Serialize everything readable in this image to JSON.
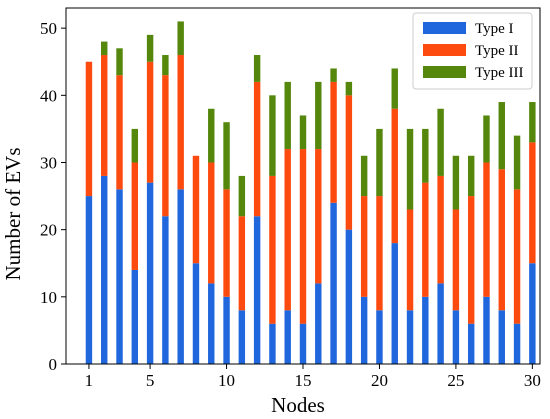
{
  "chart_data": {
    "type": "bar",
    "stacked": true,
    "title": "",
    "xlabel": "Nodes",
    "ylabel": "Number of EVs",
    "ylim": [
      0,
      53
    ],
    "xlim": [
      -0.5,
      30.5
    ],
    "xticks": [
      1,
      5,
      10,
      15,
      20,
      25,
      30
    ],
    "yticks": [
      0,
      10,
      20,
      30,
      40,
      50
    ],
    "grid": false,
    "legend_position": "top-right",
    "categories": [
      1,
      2,
      3,
      4,
      5,
      6,
      7,
      8,
      9,
      10,
      11,
      12,
      13,
      14,
      15,
      16,
      17,
      18,
      19,
      20,
      21,
      22,
      23,
      24,
      25,
      26,
      27,
      28,
      29,
      30
    ],
    "series": [
      {
        "name": "Type I",
        "color": "#2066dc",
        "values": [
          25,
          28,
          26,
          14,
          27,
          22,
          26,
          15,
          12,
          10,
          8,
          22,
          6,
          8,
          6,
          12,
          24,
          20,
          10,
          8,
          18,
          8,
          10,
          12,
          8,
          6,
          10,
          8,
          6,
          15
        ]
      },
      {
        "name": "Type II",
        "color": "#fd4b10",
        "values": [
          20,
          18,
          17,
          16,
          18,
          21,
          20,
          16,
          18,
          16,
          14,
          20,
          22,
          24,
          26,
          20,
          18,
          20,
          15,
          17,
          20,
          15,
          17,
          16,
          15,
          19,
          20,
          21,
          20,
          18
        ]
      },
      {
        "name": "Type III",
        "color": "#54870c",
        "values": [
          0,
          2,
          4,
          5,
          4,
          3,
          5,
          0,
          8,
          10,
          6,
          4,
          12,
          10,
          5,
          10,
          2,
          2,
          6,
          10,
          6,
          12,
          8,
          10,
          8,
          6,
          7,
          10,
          8,
          6
        ]
      }
    ]
  }
}
